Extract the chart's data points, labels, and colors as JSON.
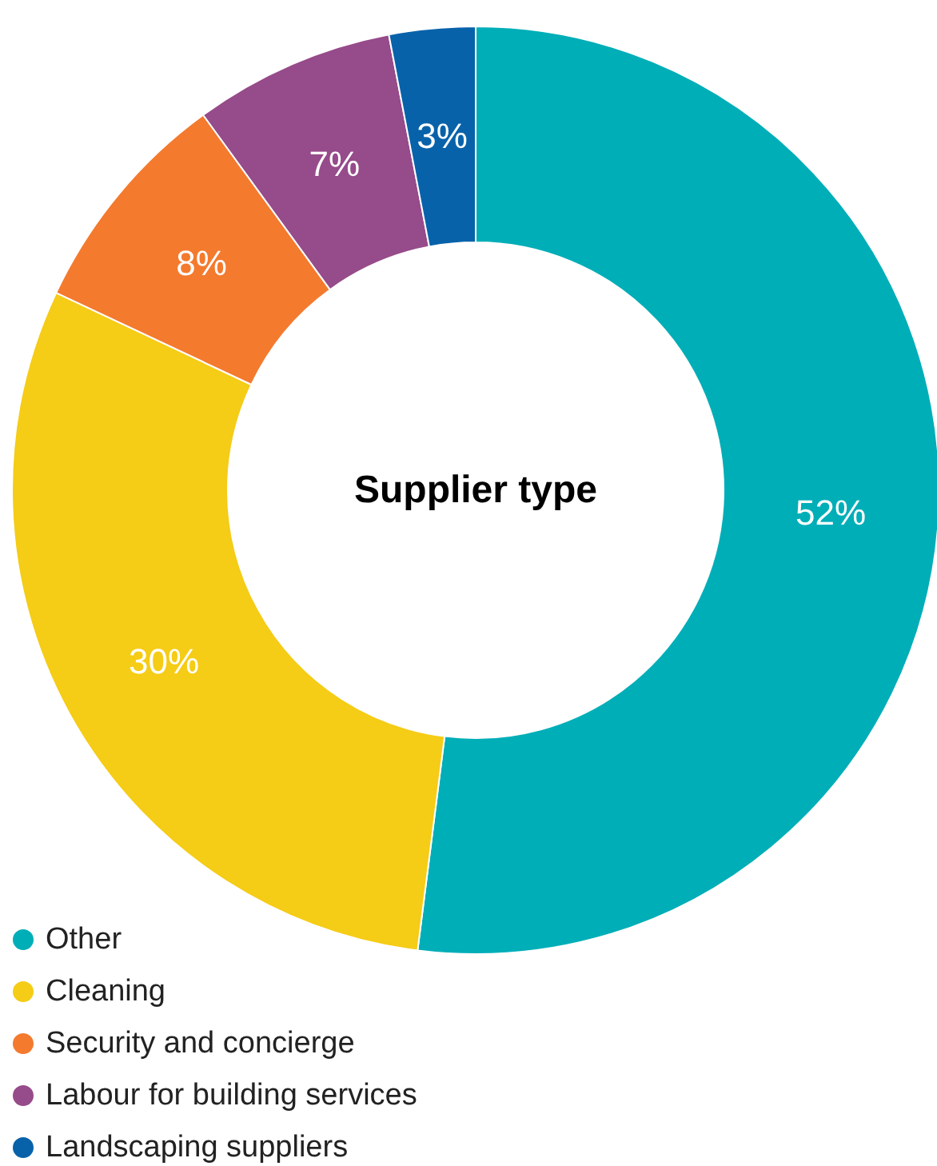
{
  "chart_data": {
    "type": "donut",
    "title": "Supplier type",
    "categories": [
      "Other",
      "Cleaning",
      "Security and concierge",
      "Labour for building services",
      "Landscaping suppliers"
    ],
    "values": [
      52,
      30,
      8,
      7,
      3
    ],
    "colors": [
      "#00aeb8",
      "#f5cc16",
      "#f47a2e",
      "#964b8a",
      "#0862aa"
    ],
    "value_labels": [
      "52%",
      "30%",
      "8%",
      "7%",
      "3%"
    ],
    "legend": "bottom left"
  }
}
